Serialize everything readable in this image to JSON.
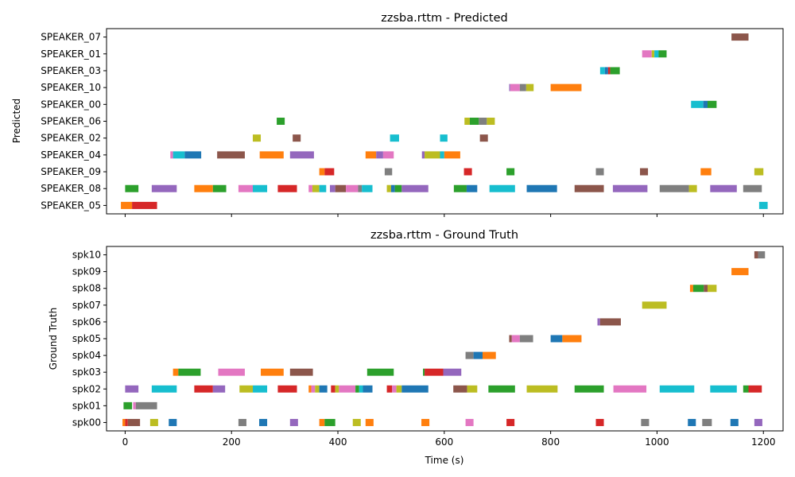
{
  "chart_data": [
    {
      "type": "timeline",
      "title": "zzsba.rttm - Predicted",
      "ylabel": "Predicted",
      "xlabel": "",
      "xlim": [
        -35,
        1237
      ],
      "rows": [
        "SPEAKER_07",
        "SPEAKER_01",
        "SPEAKER_03",
        "SPEAKER_10",
        "SPEAKER_00",
        "SPEAKER_06",
        "SPEAKER_02",
        "SPEAKER_04",
        "SPEAKER_09",
        "SPEAKER_08",
        "SPEAKER_05"
      ],
      "segments": [
        [
          "SPEAKER_07",
          1140,
          1172,
          "brown"
        ],
        [
          "SPEAKER_01",
          972,
          990,
          "pink"
        ],
        [
          "SPEAKER_01",
          990,
          995,
          "olive"
        ],
        [
          "SPEAKER_01",
          995,
          1003,
          "cyan"
        ],
        [
          "SPEAKER_01",
          1003,
          1018,
          "green"
        ],
        [
          "SPEAKER_03",
          893,
          902,
          "cyan"
        ],
        [
          "SPEAKER_03",
          902,
          908,
          "blue"
        ],
        [
          "SPEAKER_03",
          908,
          912,
          "red"
        ],
        [
          "SPEAKER_03",
          912,
          930,
          "green"
        ],
        [
          "SPEAKER_10",
          722,
          724,
          "purple"
        ],
        [
          "SPEAKER_10",
          724,
          742,
          "pink"
        ],
        [
          "SPEAKER_10",
          742,
          754,
          "gray"
        ],
        [
          "SPEAKER_10",
          754,
          768,
          "olive"
        ],
        [
          "SPEAKER_10",
          800,
          858,
          "orange"
        ],
        [
          "SPEAKER_00",
          1064,
          1087,
          "cyan"
        ],
        [
          "SPEAKER_00",
          1087,
          1095,
          "blue"
        ],
        [
          "SPEAKER_00",
          1095,
          1112,
          "green"
        ],
        [
          "SPEAKER_06",
          285,
          300,
          "green"
        ],
        [
          "SPEAKER_06",
          638,
          648,
          "olive"
        ],
        [
          "SPEAKER_06",
          648,
          665,
          "green"
        ],
        [
          "SPEAKER_06",
          665,
          680,
          "gray"
        ],
        [
          "SPEAKER_06",
          680,
          695,
          "olive"
        ],
        [
          "SPEAKER_02",
          240,
          255,
          "olive"
        ],
        [
          "SPEAKER_02",
          315,
          330,
          "brown"
        ],
        [
          "SPEAKER_02",
          498,
          515,
          "cyan"
        ],
        [
          "SPEAKER_02",
          592,
          606,
          "cyan"
        ],
        [
          "SPEAKER_02",
          667,
          682,
          "brown"
        ],
        [
          "SPEAKER_04",
          85,
          90,
          "pink"
        ],
        [
          "SPEAKER_04",
          90,
          112,
          "cyan"
        ],
        [
          "SPEAKER_04",
          112,
          143,
          "blue"
        ],
        [
          "SPEAKER_04",
          173,
          225,
          "brown"
        ],
        [
          "SPEAKER_04",
          253,
          298,
          "orange"
        ],
        [
          "SPEAKER_04",
          310,
          355,
          "purple"
        ],
        [
          "SPEAKER_04",
          452,
          472,
          "orange"
        ],
        [
          "SPEAKER_04",
          472,
          485,
          "purple"
        ],
        [
          "SPEAKER_04",
          485,
          505,
          "pink"
        ],
        [
          "SPEAKER_04",
          558,
          563,
          "purple"
        ],
        [
          "SPEAKER_04",
          563,
          592,
          "olive"
        ],
        [
          "SPEAKER_04",
          592,
          600,
          "cyan"
        ],
        [
          "SPEAKER_04",
          600,
          630,
          "orange"
        ],
        [
          "SPEAKER_09",
          365,
          375,
          "orange"
        ],
        [
          "SPEAKER_09",
          375,
          393,
          "red"
        ],
        [
          "SPEAKER_09",
          488,
          502,
          "gray"
        ],
        [
          "SPEAKER_09",
          637,
          652,
          "red"
        ],
        [
          "SPEAKER_09",
          717,
          732,
          "green"
        ],
        [
          "SPEAKER_09",
          885,
          900,
          "gray"
        ],
        [
          "SPEAKER_09",
          968,
          983,
          "brown"
        ],
        [
          "SPEAKER_09",
          1082,
          1102,
          "orange"
        ],
        [
          "SPEAKER_09",
          1183,
          1200,
          "olive"
        ],
        [
          "SPEAKER_08",
          0,
          25,
          "green"
        ],
        [
          "SPEAKER_08",
          50,
          97,
          "purple"
        ],
        [
          "SPEAKER_08",
          130,
          165,
          "orange"
        ],
        [
          "SPEAKER_08",
          165,
          190,
          "green"
        ],
        [
          "SPEAKER_08",
          213,
          240,
          "pink"
        ],
        [
          "SPEAKER_08",
          240,
          267,
          "cyan"
        ],
        [
          "SPEAKER_08",
          287,
          323,
          "red"
        ],
        [
          "SPEAKER_08",
          345,
          352,
          "pink"
        ],
        [
          "SPEAKER_08",
          352,
          365,
          "olive"
        ],
        [
          "SPEAKER_08",
          365,
          378,
          "cyan"
        ],
        [
          "SPEAKER_08",
          385,
          395,
          "purple"
        ],
        [
          "SPEAKER_08",
          395,
          415,
          "brown"
        ],
        [
          "SPEAKER_08",
          415,
          438,
          "pink"
        ],
        [
          "SPEAKER_08",
          438,
          445,
          "gray"
        ],
        [
          "SPEAKER_08",
          445,
          465,
          "cyan"
        ],
        [
          "SPEAKER_08",
          492,
          500,
          "olive"
        ],
        [
          "SPEAKER_08",
          500,
          507,
          "blue"
        ],
        [
          "SPEAKER_08",
          507,
          520,
          "green"
        ],
        [
          "SPEAKER_08",
          520,
          570,
          "purple"
        ],
        [
          "SPEAKER_08",
          618,
          642,
          "green"
        ],
        [
          "SPEAKER_08",
          642,
          662,
          "blue"
        ],
        [
          "SPEAKER_08",
          685,
          733,
          "cyan"
        ],
        [
          "SPEAKER_08",
          755,
          812,
          "blue"
        ],
        [
          "SPEAKER_08",
          845,
          900,
          "brown"
        ],
        [
          "SPEAKER_08",
          917,
          982,
          "purple"
        ],
        [
          "SPEAKER_08",
          1005,
          1060,
          "gray"
        ],
        [
          "SPEAKER_08",
          1060,
          1075,
          "olive"
        ],
        [
          "SPEAKER_08",
          1100,
          1150,
          "purple"
        ],
        [
          "SPEAKER_08",
          1162,
          1197,
          "gray"
        ],
        [
          "SPEAKER_05",
          -8,
          13,
          "orange"
        ],
        [
          "SPEAKER_05",
          13,
          60,
          "red"
        ],
        [
          "SPEAKER_05",
          1192,
          1208,
          "cyan"
        ]
      ]
    },
    {
      "type": "timeline",
      "title": "zzsba.rttm - Ground Truth",
      "ylabel": "Ground Truth",
      "xlabel": "Time (s)",
      "xlim": [
        -35,
        1237
      ],
      "xticks": [
        0,
        200,
        400,
        600,
        800,
        1000,
        1200
      ],
      "rows": [
        "spk10",
        "spk09",
        "spk08",
        "spk07",
        "spk06",
        "spk05",
        "spk04",
        "spk03",
        "spk02",
        "spk01",
        "spk00"
      ],
      "segments": [
        [
          "spk10",
          1183,
          1190,
          "brown"
        ],
        [
          "spk10",
          1190,
          1203,
          "gray"
        ],
        [
          "spk09",
          1140,
          1172,
          "orange"
        ],
        [
          "spk08",
          1062,
          1068,
          "orange"
        ],
        [
          "spk08",
          1068,
          1088,
          "green"
        ],
        [
          "spk08",
          1088,
          1095,
          "brown"
        ],
        [
          "spk08",
          1095,
          1112,
          "olive"
        ],
        [
          "spk07",
          972,
          1018,
          "olive"
        ],
        [
          "spk06",
          888,
          893,
          "purple"
        ],
        [
          "spk06",
          893,
          932,
          "brown"
        ],
        [
          "spk05",
          722,
          727,
          "brown"
        ],
        [
          "spk05",
          727,
          742,
          "pink"
        ],
        [
          "spk05",
          742,
          767,
          "gray"
        ],
        [
          "spk05",
          800,
          822,
          "blue"
        ],
        [
          "spk05",
          822,
          858,
          "orange"
        ],
        [
          "spk04",
          640,
          655,
          "gray"
        ],
        [
          "spk04",
          655,
          672,
          "blue"
        ],
        [
          "spk04",
          672,
          697,
          "orange"
        ],
        [
          "spk03",
          90,
          100,
          "orange"
        ],
        [
          "spk03",
          100,
          142,
          "green"
        ],
        [
          "spk03",
          175,
          225,
          "pink"
        ],
        [
          "spk03",
          255,
          298,
          "orange"
        ],
        [
          "spk03",
          310,
          353,
          "brown"
        ],
        [
          "spk03",
          455,
          505,
          "green"
        ],
        [
          "spk03",
          560,
          563,
          "green"
        ],
        [
          "spk03",
          563,
          598,
          "red"
        ],
        [
          "spk03",
          598,
          632,
          "purple"
        ],
        [
          "spk02",
          0,
          25,
          "purple"
        ],
        [
          "spk02",
          50,
          97,
          "cyan"
        ],
        [
          "spk02",
          130,
          165,
          "red"
        ],
        [
          "spk02",
          165,
          188,
          "purple"
        ],
        [
          "spk02",
          215,
          240,
          "olive"
        ],
        [
          "spk02",
          240,
          267,
          "cyan"
        ],
        [
          "spk02",
          287,
          323,
          "red"
        ],
        [
          "spk02",
          345,
          350,
          "orange"
        ],
        [
          "spk02",
          350,
          357,
          "pink"
        ],
        [
          "spk02",
          357,
          365,
          "olive"
        ],
        [
          "spk02",
          365,
          380,
          "blue"
        ],
        [
          "spk02",
          387,
          395,
          "red"
        ],
        [
          "spk02",
          395,
          402,
          "olive"
        ],
        [
          "spk02",
          402,
          433,
          "pink"
        ],
        [
          "spk02",
          433,
          440,
          "green"
        ],
        [
          "spk02",
          440,
          447,
          "cyan"
        ],
        [
          "spk02",
          447,
          465,
          "blue"
        ],
        [
          "spk02",
          492,
          502,
          "red"
        ],
        [
          "spk02",
          502,
          510,
          "pink"
        ],
        [
          "spk02",
          510,
          520,
          "olive"
        ],
        [
          "spk02",
          520,
          570,
          "blue"
        ],
        [
          "spk02",
          617,
          643,
          "brown"
        ],
        [
          "spk02",
          643,
          662,
          "olive"
        ],
        [
          "spk02",
          683,
          733,
          "green"
        ],
        [
          "spk02",
          755,
          813,
          "olive"
        ],
        [
          "spk02",
          845,
          900,
          "green"
        ],
        [
          "spk02",
          918,
          980,
          "pink"
        ],
        [
          "spk02",
          1005,
          1070,
          "cyan"
        ],
        [
          "spk02",
          1100,
          1150,
          "cyan"
        ],
        [
          "spk02",
          1162,
          1172,
          "green"
        ],
        [
          "spk02",
          1172,
          1197,
          "red"
        ],
        [
          "spk01",
          -3,
          13,
          "green"
        ],
        [
          "spk01",
          15,
          20,
          "pink"
        ],
        [
          "spk01",
          20,
          60,
          "gray"
        ],
        [
          "spk00",
          -5,
          0,
          "orange"
        ],
        [
          "spk00",
          0,
          5,
          "red"
        ],
        [
          "spk00",
          5,
          28,
          "brown"
        ],
        [
          "spk00",
          47,
          62,
          "olive"
        ],
        [
          "spk00",
          82,
          97,
          "blue"
        ],
        [
          "spk00",
          213,
          228,
          "gray"
        ],
        [
          "spk00",
          252,
          267,
          "blue"
        ],
        [
          "spk00",
          310,
          325,
          "purple"
        ],
        [
          "spk00",
          365,
          375,
          "orange"
        ],
        [
          "spk00",
          375,
          395,
          "green"
        ],
        [
          "spk00",
          428,
          443,
          "olive"
        ],
        [
          "spk00",
          452,
          467,
          "orange"
        ],
        [
          "spk00",
          557,
          572,
          "orange"
        ],
        [
          "spk00",
          640,
          655,
          "pink"
        ],
        [
          "spk00",
          717,
          732,
          "red"
        ],
        [
          "spk00",
          885,
          900,
          "red"
        ],
        [
          "spk00",
          970,
          985,
          "gray"
        ],
        [
          "spk00",
          1058,
          1073,
          "blue"
        ],
        [
          "spk00",
          1085,
          1103,
          "gray"
        ],
        [
          "spk00",
          1138,
          1153,
          "blue"
        ],
        [
          "spk00",
          1183,
          1198,
          "purple"
        ]
      ]
    }
  ],
  "colors": {
    "blue": "#1f77b4",
    "orange": "#ff7f0e",
    "green": "#2ca02c",
    "red": "#d62728",
    "purple": "#9467bd",
    "brown": "#8c564b",
    "pink": "#e377c2",
    "gray": "#7f7f7f",
    "olive": "#bcbd22",
    "cyan": "#17becf"
  }
}
